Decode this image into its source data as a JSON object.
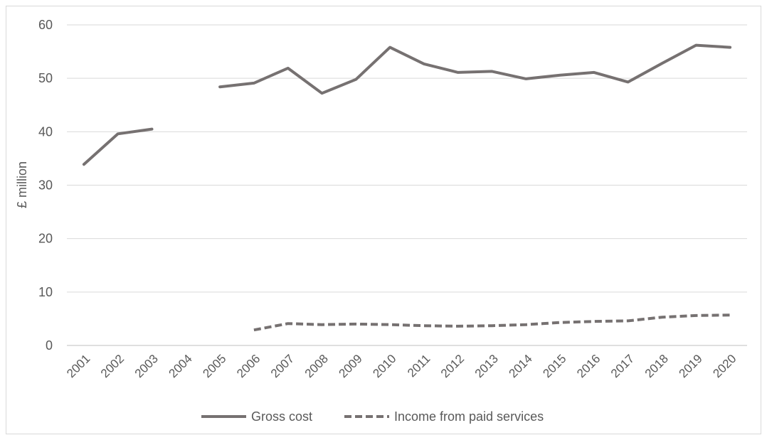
{
  "chart_data": {
    "type": "line",
    "title": "",
    "xlabel": "",
    "ylabel": "£ million",
    "categories": [
      "2001",
      "2002",
      "2003",
      "2004",
      "2005",
      "2006",
      "2007",
      "2008",
      "2009",
      "2010",
      "2011",
      "2012",
      "2013",
      "2014",
      "2015",
      "2016",
      "2017",
      "2018",
      "2019",
      "2020"
    ],
    "ylim": [
      0,
      60
    ],
    "yticks": [
      0,
      10,
      20,
      30,
      40,
      50,
      60
    ],
    "grid": true,
    "legend_position": "bottom",
    "series": [
      {
        "name": "Gross cost",
        "style": "solid",
        "color": "#767171",
        "values": [
          33.9,
          39.6,
          40.5,
          null,
          48.4,
          49.1,
          51.9,
          47.2,
          49.8,
          55.8,
          52.7,
          51.1,
          51.3,
          49.9,
          50.6,
          51.1,
          49.3,
          52.8,
          56.2,
          55.8
        ]
      },
      {
        "name": "Income from paid services",
        "style": "dashed",
        "color": "#767171",
        "values": [
          null,
          null,
          null,
          null,
          null,
          2.9,
          4.1,
          3.9,
          4.0,
          3.9,
          3.7,
          3.6,
          3.7,
          3.9,
          4.3,
          4.5,
          4.6,
          5.3,
          5.6,
          5.7
        ]
      }
    ]
  }
}
